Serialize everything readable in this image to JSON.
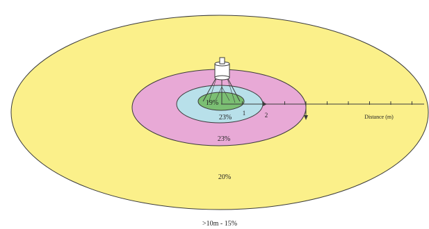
{
  "zones": [
    {
      "id": "inner",
      "label": "19%",
      "color": "#7bbf73"
    },
    {
      "id": "second",
      "label": "23%",
      "color": "#b8e0ea"
    },
    {
      "id": "third",
      "label": "23%",
      "color": "#e8a9d6"
    },
    {
      "id": "outer",
      "label": "20%",
      "color": "#fbf08a"
    }
  ],
  "beyond_label": ">10m - 15%",
  "axis": {
    "label": "Distance (m)",
    "ticks": [
      "1",
      "2"
    ]
  },
  "colors": {
    "outline": "#3a3a3a",
    "background": "#ffffff"
  },
  "icons": [
    "sprinkler-icon"
  ]
}
